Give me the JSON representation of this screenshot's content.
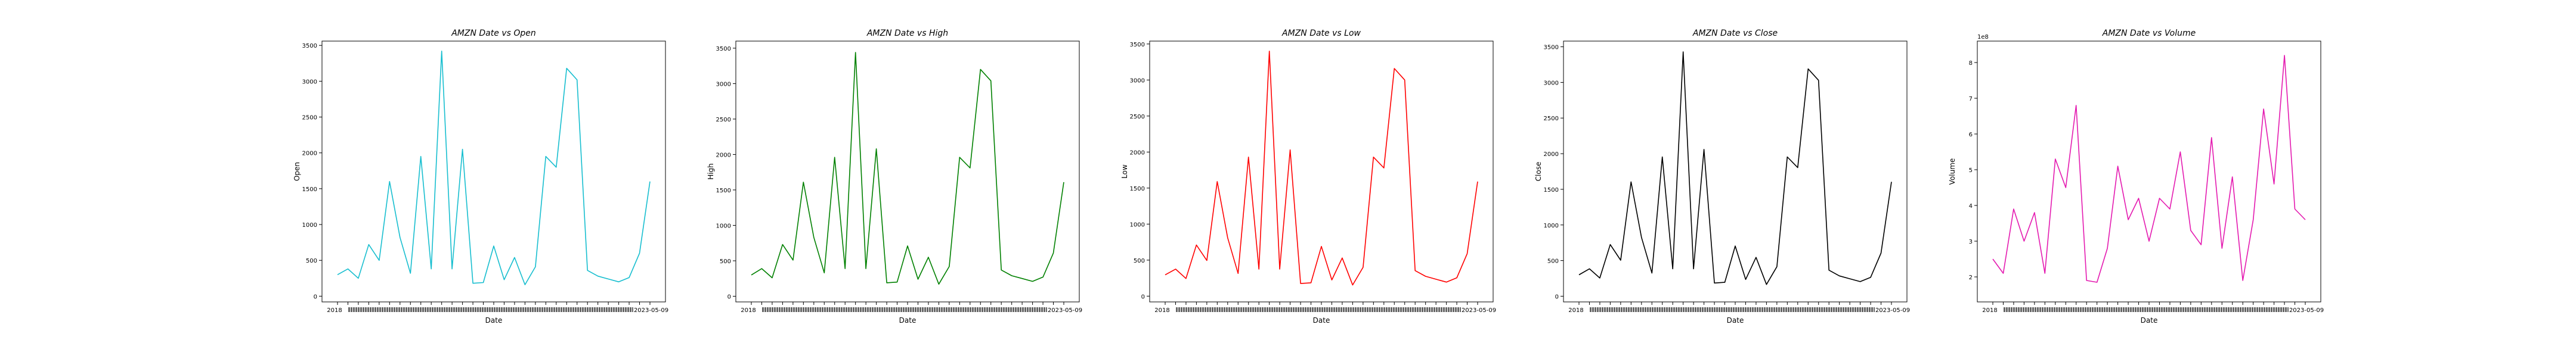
{
  "chart_data": [
    {
      "type": "line",
      "title": "AMZN Date vs Open",
      "xlabel": "Date",
      "ylabel": "Open",
      "offset_label": "",
      "color": "#17becf",
      "ylim": [
        -80,
        3560
      ],
      "yticks": [
        {
          "v": 0,
          "l": "0"
        },
        {
          "v": 500,
          "l": "500"
        },
        {
          "v": 1000,
          "l": "1000"
        },
        {
          "v": 1500,
          "l": "1500"
        },
        {
          "v": 2000,
          "l": "2000"
        },
        {
          "v": 2500,
          "l": "2500"
        },
        {
          "v": 3000,
          "l": "3000"
        },
        {
          "v": 3500,
          "l": "3500"
        }
      ],
      "x_start_label": "2018",
      "x_end_label": "2023-05-09",
      "values": [
        300,
        380,
        250,
        720,
        500,
        1600,
        820,
        320,
        1950,
        380,
        3420,
        380,
        2050,
        180,
        190,
        700,
        230,
        540,
        160,
        410,
        1950,
        1800,
        3180,
        3020,
        360,
        280,
        240,
        200,
        260,
        600,
        1600
      ]
    },
    {
      "type": "line",
      "title": "AMZN Date vs High",
      "xlabel": "Date",
      "ylabel": "High",
      "offset_label": "",
      "color": "#008000",
      "ylim": [
        -80,
        3600
      ],
      "yticks": [
        {
          "v": 0,
          "l": "0"
        },
        {
          "v": 500,
          "l": "500"
        },
        {
          "v": 1000,
          "l": "1000"
        },
        {
          "v": 1500,
          "l": "1500"
        },
        {
          "v": 2000,
          "l": "2000"
        },
        {
          "v": 2500,
          "l": "2500"
        },
        {
          "v": 3000,
          "l": "3000"
        },
        {
          "v": 3500,
          "l": "3500"
        }
      ],
      "x_start_label": "2018",
      "x_end_label": "2023-05-09",
      "values": [
        300,
        390,
        260,
        730,
        510,
        1610,
        830,
        330,
        1960,
        390,
        3440,
        390,
        2080,
        190,
        200,
        710,
        240,
        550,
        170,
        420,
        1960,
        1810,
        3200,
        3040,
        370,
        290,
        250,
        210,
        270,
        610,
        1610
      ]
    },
    {
      "type": "line",
      "title": "AMZN Date vs Low",
      "xlabel": "Date",
      "ylabel": "Low",
      "offset_label": "",
      "color": "#ff0000",
      "ylim": [
        -80,
        3540
      ],
      "yticks": [
        {
          "v": 0,
          "l": "0"
        },
        {
          "v": 500,
          "l": "500"
        },
        {
          "v": 1000,
          "l": "1000"
        },
        {
          "v": 1500,
          "l": "1500"
        },
        {
          "v": 2000,
          "l": "2000"
        },
        {
          "v": 2500,
          "l": "2500"
        },
        {
          "v": 3000,
          "l": "3000"
        },
        {
          "v": 3500,
          "l": "3500"
        }
      ],
      "x_start_label": "2018",
      "x_end_label": "2023-05-09",
      "values": [
        295,
        375,
        245,
        710,
        495,
        1590,
        810,
        315,
        1930,
        375,
        3400,
        375,
        2030,
        175,
        185,
        690,
        225,
        530,
        155,
        400,
        1930,
        1780,
        3160,
        3000,
        355,
        275,
        235,
        195,
        255,
        590,
        1590
      ]
    },
    {
      "type": "line",
      "title": "AMZN Date vs Close",
      "xlabel": "Date",
      "ylabel": "Close",
      "offset_label": "",
      "color": "#000000",
      "ylim": [
        -80,
        3580
      ],
      "yticks": [
        {
          "v": 0,
          "l": "0"
        },
        {
          "v": 500,
          "l": "500"
        },
        {
          "v": 1000,
          "l": "1000"
        },
        {
          "v": 1500,
          "l": "1500"
        },
        {
          "v": 2000,
          "l": "2000"
        },
        {
          "v": 2500,
          "l": "2500"
        },
        {
          "v": 3000,
          "l": "3000"
        },
        {
          "v": 3500,
          "l": "3500"
        }
      ],
      "x_start_label": "2018",
      "x_end_label": "2023-05-09",
      "values": [
        300,
        385,
        255,
        725,
        505,
        1605,
        825,
        325,
        1955,
        385,
        3430,
        385,
        2060,
        185,
        195,
        705,
        235,
        545,
        165,
        415,
        1955,
        1805,
        3190,
        3030,
        365,
        285,
        245,
        205,
        265,
        605,
        1605
      ]
    },
    {
      "type": "line",
      "title": "AMZN Date vs Volume",
      "xlabel": "Date",
      "ylabel": "Volume",
      "offset_label": "1e8",
      "color": "#e41ab0",
      "ylim": [
        1.3,
        8.6
      ],
      "yticks": [
        {
          "v": 2,
          "l": "2"
        },
        {
          "v": 3,
          "l": "3"
        },
        {
          "v": 4,
          "l": "4"
        },
        {
          "v": 5,
          "l": "5"
        },
        {
          "v": 6,
          "l": "6"
        },
        {
          "v": 7,
          "l": "7"
        },
        {
          "v": 8,
          "l": "8"
        }
      ],
      "x_start_label": "2018",
      "x_end_label": "2023-05-09",
      "values": [
        2.5,
        2.1,
        3.9,
        3.0,
        3.8,
        2.1,
        5.3,
        4.5,
        6.8,
        1.9,
        1.85,
        2.8,
        5.1,
        3.6,
        4.2,
        3.0,
        4.2,
        3.9,
        5.5,
        3.3,
        2.9,
        5.9,
        2.8,
        4.8,
        1.9,
        3.6,
        6.7,
        4.6,
        8.2,
        3.9,
        3.6
      ]
    }
  ]
}
